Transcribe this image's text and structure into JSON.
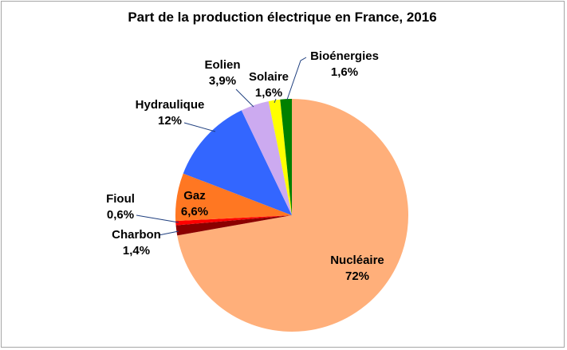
{
  "chart_data": {
    "type": "pie",
    "title": "Part de la production électrique en France, 2016",
    "slices": [
      {
        "name": "Nucléaire",
        "pct_label": "72%",
        "value": 72.0,
        "color": "#FFAF7A"
      },
      {
        "name": "Charbon",
        "pct_label": "1,4%",
        "value": 1.4,
        "color": "#8B0000"
      },
      {
        "name": "Fioul",
        "pct_label": "0,6%",
        "value": 0.6,
        "color": "#FF0000"
      },
      {
        "name": "Gaz",
        "pct_label": "6,6%",
        "value": 6.6,
        "color": "#FF7722"
      },
      {
        "name": "Hydraulique",
        "pct_label": "12%",
        "value": 12.0,
        "color": "#3366FF"
      },
      {
        "name": "Eolien",
        "pct_label": "3,9%",
        "value": 3.9,
        "color": "#CCAAF0"
      },
      {
        "name": "Solaire",
        "pct_label": "1,6%",
        "value": 1.6,
        "color": "#FFFF00"
      },
      {
        "name": "Bioénergies",
        "pct_label": "1,6%",
        "value": 1.6,
        "color": "#008000"
      }
    ]
  }
}
